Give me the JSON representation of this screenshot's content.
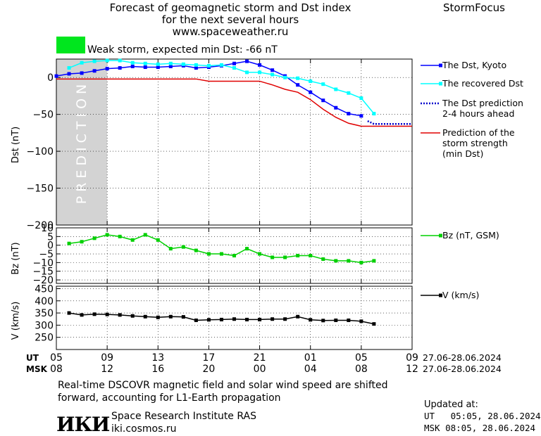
{
  "header": {
    "title_line1": "Forecast of geomagnetic storm and Dst index",
    "title_line2": "for the next several hours",
    "url": "www.spaceweather.ru",
    "brand": "StormFocus",
    "status_text": "Weak storm, expected min Dst: -66 nT",
    "status_color": "#00e61e"
  },
  "footer": {
    "note_line1": "Real-time DSCOVR magnetic field and solar wind speed are shifted",
    "note_line2": "forward, accounting for L1-Earth propagation",
    "institute": "Space Research Institute RAS",
    "site": "iki.cosmos.ru",
    "logo_text": "ИКИ",
    "updated_label": "Updated at:",
    "updated_ut": "UT   05:05, 28.06.2024",
    "updated_msk": "MSK 08:05, 28.06.2024"
  },
  "chart_data": [
    {
      "type": "line",
      "panel": "dst",
      "ylabel": "Dst (nT)",
      "ylim": [
        -200,
        25
      ],
      "yticks": [
        0,
        -50,
        -100,
        -150,
        -200
      ],
      "prediction_band_label": "PREDICTION",
      "prediction_band_x": [
        5,
        9
      ],
      "series": [
        {
          "name": "The Dst, Kyoto",
          "color": "#0000ff",
          "marker": "square",
          "x": [
            5,
            6,
            7,
            8,
            9,
            10,
            11,
            12,
            13,
            14,
            15,
            16,
            17,
            18,
            19,
            20,
            21,
            22,
            23,
            24,
            25,
            26,
            27,
            28,
            29
          ],
          "values": [
            2,
            5,
            6,
            9,
            12,
            13,
            15,
            14,
            14,
            15,
            16,
            13,
            14,
            16,
            19,
            22,
            17,
            10,
            2,
            -10,
            -20,
            -31,
            -41,
            -49,
            -52
          ]
        },
        {
          "name": "The recovered Dst",
          "color": "#00ffff",
          "marker": "square",
          "x": [
            6,
            7,
            8,
            9,
            10,
            11,
            12,
            13,
            14,
            15,
            16,
            17,
            18,
            19,
            20,
            21,
            22,
            23,
            24,
            25,
            26,
            27,
            28,
            29,
            30
          ],
          "values": [
            13,
            20,
            22,
            23,
            23,
            20,
            19,
            18,
            19,
            18,
            17,
            16,
            17,
            13,
            7,
            7,
            4,
            0,
            -1,
            -5,
            -9,
            -16,
            -21,
            -28,
            -49
          ]
        },
        {
          "name": "The Dst prediction\n2-4 hours ahead",
          "color": "#0000cc",
          "style": "dotted",
          "x": [
            29.5,
            30,
            31,
            32,
            33
          ],
          "values": [
            -59,
            -63,
            -63,
            -63,
            -63
          ]
        },
        {
          "name": "Prediction of the\nstorm strength\n(min Dst)",
          "color": "#e00000",
          "x": [
            5,
            6,
            7,
            8,
            9,
            10,
            11,
            12,
            13,
            14,
            15,
            16,
            17,
            18,
            19,
            20,
            21,
            22,
            23,
            24,
            25,
            26,
            27,
            28,
            29,
            30,
            31,
            32,
            33
          ],
          "values": [
            -2,
            -2,
            -2,
            -2,
            -2,
            -2,
            -2,
            -2,
            -2,
            -2,
            -2,
            -2,
            -5,
            -5,
            -5,
            -5,
            -5,
            -10,
            -16,
            -20,
            -30,
            -43,
            -54,
            -62,
            -66,
            -66,
            -66,
            -66,
            -66
          ]
        }
      ]
    },
    {
      "type": "line",
      "panel": "bz",
      "ylabel": "Bz (nT)",
      "ylim": [
        -22,
        10
      ],
      "yticks": [
        10,
        5,
        0,
        -5,
        -10,
        -15,
        -20
      ],
      "series": [
        {
          "name": "Bz (nT, GSM)",
          "color": "#00d000",
          "marker": "square",
          "x": [
            6,
            7,
            8,
            9,
            10,
            11,
            12,
            13,
            14,
            15,
            16,
            17,
            18,
            19,
            20,
            21,
            22,
            23,
            24,
            25,
            26,
            27,
            28,
            29,
            30
          ],
          "values": [
            1,
            2,
            4,
            6,
            5,
            3,
            6,
            3,
            -2,
            -1,
            -3,
            -5,
            -5,
            -6,
            -2,
            -5,
            -7,
            -7,
            -6,
            -6,
            -8,
            -9,
            -9,
            -10,
            -9
          ]
        }
      ]
    },
    {
      "type": "line",
      "panel": "v",
      "ylabel": "V (km/s)",
      "ylim": [
        200,
        460
      ],
      "yticks": [
        450,
        400,
        350,
        300,
        250
      ],
      "series": [
        {
          "name": "V (km/s)",
          "color": "#000000",
          "marker": "square",
          "x": [
            6,
            7,
            8,
            9,
            10,
            11,
            12,
            13,
            14,
            15,
            16,
            17,
            18,
            19,
            20,
            21,
            22,
            23,
            24,
            25,
            26,
            27,
            28,
            29,
            30
          ],
          "values": [
            350,
            342,
            345,
            344,
            342,
            338,
            335,
            332,
            335,
            334,
            320,
            322,
            323,
            325,
            323,
            323,
            325,
            325,
            335,
            322,
            319,
            320,
            320,
            316,
            305
          ]
        }
      ]
    }
  ],
  "x_axis": {
    "ut_label": "UT",
    "msk_label": "MSK",
    "ut_ticks": [
      "05",
      "09",
      "13",
      "17",
      "21",
      "01",
      "05",
      "09"
    ],
    "msk_ticks": [
      "08",
      "12",
      "16",
      "20",
      "00",
      "04",
      "08",
      "12"
    ],
    "ut_range": "27.06-28.06.2024",
    "msk_range": "27.06-28.06.2024"
  }
}
